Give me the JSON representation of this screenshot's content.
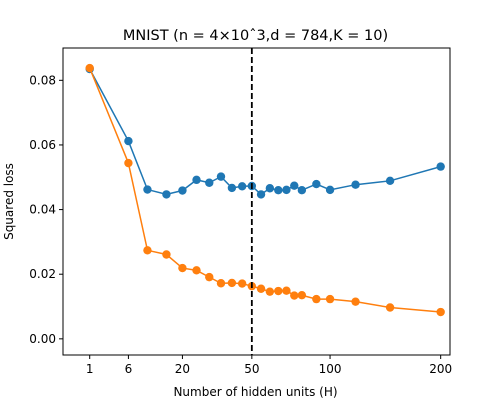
{
  "chart_data": {
    "type": "line",
    "title": "MNIST (n = 4×10ˆ3,d = 784,K = 10)",
    "xlabel": "Number of hidden units (H)",
    "ylabel": "Squared loss",
    "x_scale": "sqrt",
    "xlim": [
      0,
      210
    ],
    "ylim": [
      -0.005,
      0.09
    ],
    "x_ticks": [
      1,
      6,
      20,
      50,
      100,
      200
    ],
    "x_tick_labels": [
      "1",
      "6",
      "20",
      "50",
      "100",
      "200"
    ],
    "y_ticks": [
      0.0,
      0.02,
      0.04,
      0.06,
      0.08
    ],
    "y_tick_labels": [
      "0.00",
      "0.02",
      "0.04",
      "0.06",
      "0.08"
    ],
    "grid": false,
    "vline": {
      "x": 50,
      "style": "dashed",
      "color": "#000000"
    },
    "series": [
      {
        "color": "#1f77b4",
        "points": [
          [
            1,
            0.0835
          ],
          [
            6,
            0.0612
          ],
          [
            10,
            0.0462
          ],
          [
            15,
            0.0447
          ],
          [
            20,
            0.0459
          ],
          [
            25,
            0.0492
          ],
          [
            30,
            0.0483
          ],
          [
            35,
            0.0502
          ],
          [
            40,
            0.0467
          ],
          [
            45,
            0.0472
          ],
          [
            50,
            0.0473
          ],
          [
            55,
            0.0447
          ],
          [
            60,
            0.0466
          ],
          [
            65,
            0.046
          ],
          [
            70,
            0.0461
          ],
          [
            75,
            0.0474
          ],
          [
            80,
            0.046
          ],
          [
            90,
            0.0479
          ],
          [
            100,
            0.0461
          ],
          [
            120,
            0.0477
          ],
          [
            150,
            0.0489
          ],
          [
            200,
            0.0533
          ]
        ]
      },
      {
        "color": "#ff7f0e",
        "points": [
          [
            1,
            0.0838
          ],
          [
            6,
            0.0544
          ],
          [
            10,
            0.0274
          ],
          [
            15,
            0.0261
          ],
          [
            20,
            0.0219
          ],
          [
            25,
            0.0212
          ],
          [
            30,
            0.0191
          ],
          [
            35,
            0.0172
          ],
          [
            40,
            0.0173
          ],
          [
            45,
            0.0171
          ],
          [
            50,
            0.0163
          ],
          [
            55,
            0.0155
          ],
          [
            60,
            0.0146
          ],
          [
            65,
            0.0148
          ],
          [
            70,
            0.0149
          ],
          [
            75,
            0.0134
          ],
          [
            80,
            0.0135
          ],
          [
            90,
            0.0123
          ],
          [
            100,
            0.0123
          ],
          [
            120,
            0.0115
          ],
          [
            150,
            0.0097
          ],
          [
            200,
            0.0083
          ]
        ]
      }
    ]
  }
}
